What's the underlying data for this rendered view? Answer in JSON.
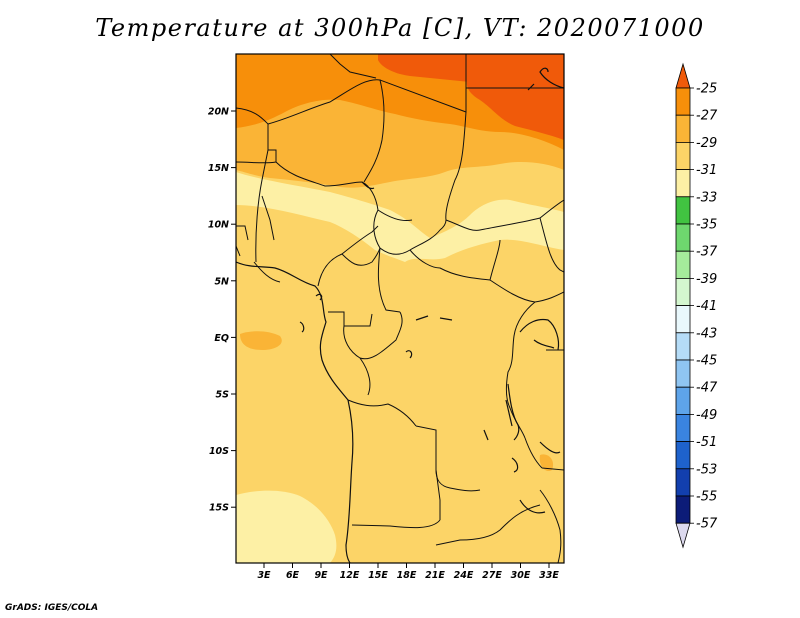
{
  "title": "Temperature at 300hPa [C], VT: 2020071000",
  "credit": "GrADS: IGES/COLA",
  "map": {
    "lon_labels": [
      "3E",
      "6E",
      "9E",
      "12E",
      "15E",
      "18E",
      "21E",
      "24E",
      "27E",
      "30E",
      "33E"
    ],
    "lat_labels": [
      "20N",
      "15N",
      "10N",
      "5N",
      "EQ",
      "5S",
      "10S",
      "15S"
    ]
  },
  "colorbar": {
    "levels": [
      "-25",
      "-27",
      "-29",
      "-31",
      "-33",
      "-35",
      "-37",
      "-39",
      "-41",
      "-43",
      "-45",
      "-47",
      "-49",
      "-51",
      "-53",
      "-55",
      "-57"
    ],
    "colors": [
      "#f05a0a",
      "#f78f0a",
      "#fab436",
      "#fcd467",
      "#fdf0a5",
      "#41c341",
      "#6ed76e",
      "#a5ec9b",
      "#d4f7cf",
      "#e9f8fc",
      "#b5dcf7",
      "#8fc5f2",
      "#5ea4ea",
      "#3a84e0",
      "#1e62cc",
      "#123fae",
      "#0c1c78",
      "#dcd9ee"
    ]
  },
  "region_colors": {
    "c25": "#f05a0a",
    "c27": "#f78f0a",
    "c29": "#fab436",
    "c31": "#fcd467",
    "c33": "#fdf0a5"
  }
}
